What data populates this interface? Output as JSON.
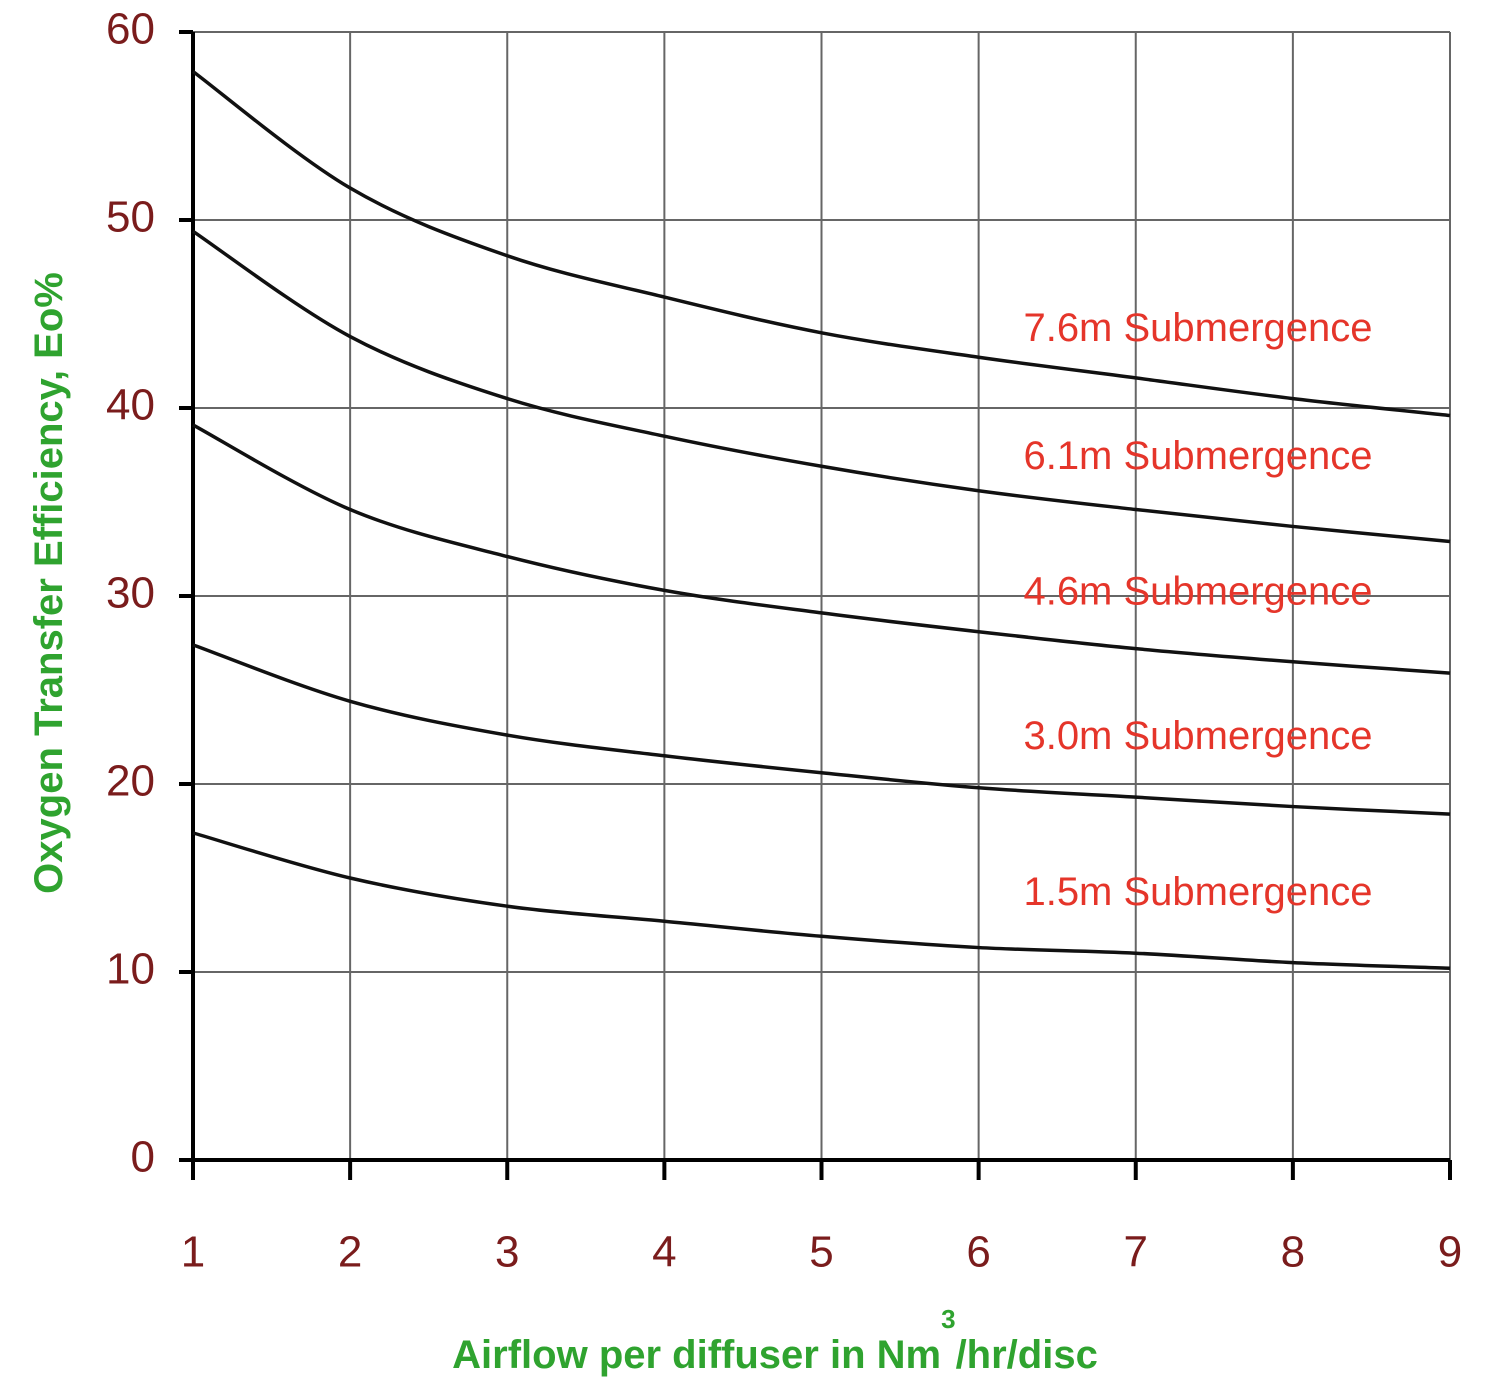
{
  "chart_data": {
    "type": "line",
    "y_label": "Oxygen Transfer Efficiency, Eo%",
    "x_label": [
      "Airflow per diffuser in Nm",
      "3",
      "/hr/disc"
    ],
    "x": [
      1,
      2,
      3,
      4,
      5,
      6,
      7,
      8,
      9
    ],
    "series": [
      {
        "name": "7.6m Submergence",
        "color": "#111111",
        "values": [
          57.9,
          51.7,
          48.1,
          45.9,
          44.0,
          42.7,
          41.6,
          40.5,
          39.6
        ]
      },
      {
        "name": "6.1m Submergence",
        "color": "#111111",
        "values": [
          49.4,
          43.8,
          40.5,
          38.5,
          36.9,
          35.6,
          34.6,
          33.7,
          32.9
        ]
      },
      {
        "name": "4.6m Submergence",
        "color": "#111111",
        "values": [
          39.1,
          34.6,
          32.1,
          30.3,
          29.1,
          28.1,
          27.2,
          26.5,
          25.9
        ]
      },
      {
        "name": "3.0m Submergence",
        "color": "#111111",
        "values": [
          27.4,
          24.4,
          22.6,
          21.5,
          20.6,
          19.8,
          19.3,
          18.8,
          18.4
        ]
      },
      {
        "name": "1.5m Submergence",
        "color": "#111111",
        "values": [
          17.4,
          15.0,
          13.5,
          12.7,
          11.9,
          11.3,
          11.0,
          10.5,
          10.2
        ]
      }
    ],
    "xlim": [
      1,
      9
    ],
    "xticks": [
      1,
      2,
      3,
      4,
      5,
      6,
      7,
      8,
      9
    ],
    "ylim": [
      0,
      60
    ],
    "yticks": [
      0,
      10,
      20,
      30,
      40,
      50,
      60
    ],
    "grid": true
  }
}
